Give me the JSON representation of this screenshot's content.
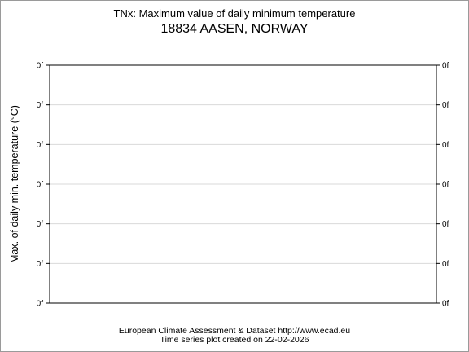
{
  "chart_data": {
    "type": "line",
    "title": "TNx: Maximum value of daily minimum temperature",
    "subtitle": "18834 AASEN, NORWAY",
    "ylabel": "Max. of daily min. temperature (°C)",
    "xlabel": "",
    "y_tick_labels": [
      "0f",
      "0f",
      "0f",
      "0f",
      "0f",
      "0f",
      "0f"
    ],
    "y_tick_labels_right": [
      "0f",
      "0f",
      "0f",
      "0f",
      "0f",
      "0f",
      "0f"
    ],
    "series": [],
    "grid": true
  },
  "footer": {
    "line1": "European Climate Assessment & Dataset  http://www.ecad.eu",
    "line2": "Time series plot created on 22-02-2026"
  },
  "colors": {
    "grid": "#d9d9d9",
    "axis": "#000000",
    "frame": "#9a9a9a"
  }
}
